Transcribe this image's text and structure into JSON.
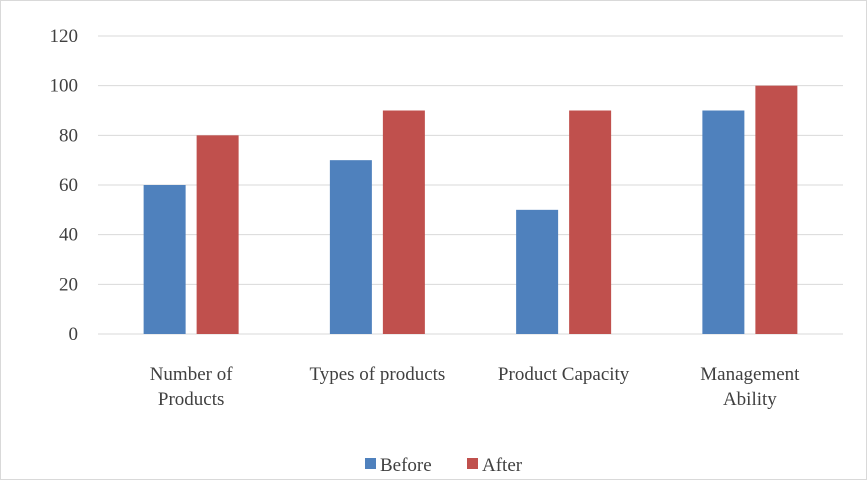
{
  "chart_data": {
    "type": "bar",
    "title": "",
    "xlabel": "",
    "ylabel": "",
    "categories": [
      "Number of Products",
      "Types of products",
      "Product Capacity",
      "Management Ability"
    ],
    "category_label_lines": [
      [
        "Number of",
        "Products"
      ],
      [
        "Types of products"
      ],
      [
        "Product Capacity"
      ],
      [
        "Management",
        "Ability"
      ]
    ],
    "series": [
      {
        "name": "Before",
        "values": [
          60,
          70,
          50,
          90
        ],
        "color": "#4f81bd"
      },
      {
        "name": "After",
        "values": [
          80,
          90,
          90,
          100
        ],
        "color": "#c0504d"
      }
    ],
    "ylim": [
      0,
      120
    ],
    "yticks": [
      0,
      20,
      40,
      60,
      80,
      100,
      120
    ],
    "grid": true,
    "legend_position": "bottom"
  }
}
